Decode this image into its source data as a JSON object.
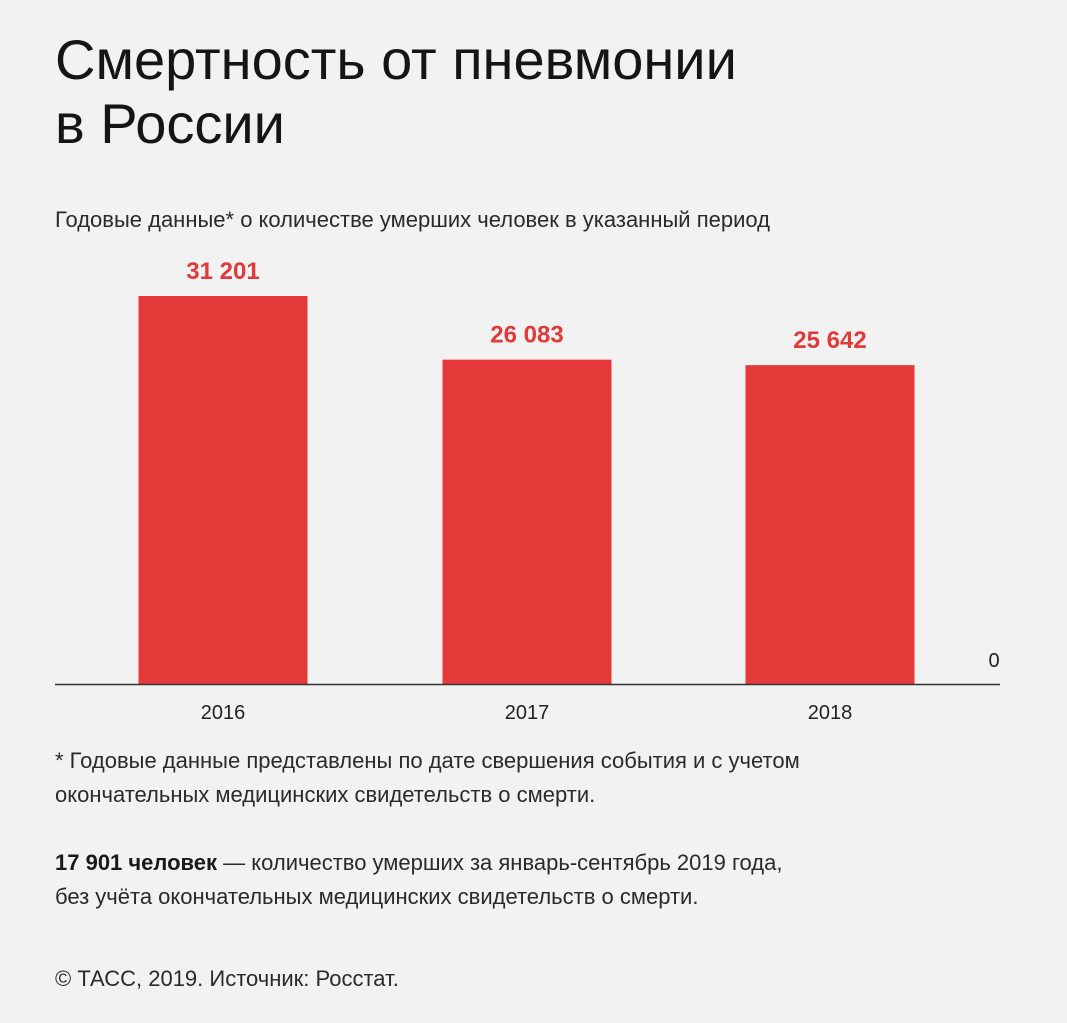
{
  "header": {
    "title_line1": "Смертность от пневмонии",
    "title_line2": "в России",
    "subtitle": "Годовые данные* о количестве умерших человек в указанный период"
  },
  "chart_data": {
    "type": "bar",
    "categories": [
      "2016",
      "2017",
      "2018"
    ],
    "values": [
      31201,
      26083,
      25642
    ],
    "value_labels": [
      "31 201",
      "26 083",
      "25 642"
    ],
    "baseline_label": "0",
    "ylim": [
      0,
      31201
    ],
    "bar_color": "#e63a3a",
    "label_color": "#e03a3a",
    "axis_color": "#333333",
    "grid": false
  },
  "footnote": {
    "line1": "* Годовые данные представлены по дате свершения события и с учетом",
    "line2": "окончательных медицинских свидетельств о смерти."
  },
  "note": {
    "bold": "17 901 человек",
    "rest": " — количество умерших за январь-сентябрь 2019 года,",
    "line2": "без учёта окончательных медицинских свидетельств о смерти."
  },
  "source": "© ТАСС, 2019. Источник: Росстат."
}
